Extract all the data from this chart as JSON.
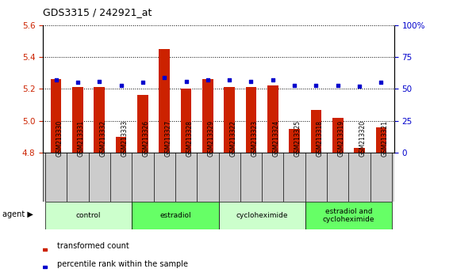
{
  "title": "GDS3315 / 242921_at",
  "categories": [
    "GSM213330",
    "GSM213331",
    "GSM213332",
    "GSM213333",
    "GSM213326",
    "GSM213327",
    "GSM213328",
    "GSM213329",
    "GSM213322",
    "GSM213323",
    "GSM213324",
    "GSM213325",
    "GSM213318",
    "GSM213319",
    "GSM213320",
    "GSM213321"
  ],
  "red_values": [
    5.26,
    5.21,
    5.21,
    4.9,
    5.16,
    5.45,
    5.2,
    5.26,
    5.21,
    5.21,
    5.22,
    4.95,
    5.07,
    5.02,
    4.83,
    4.96
  ],
  "blue_values": [
    57,
    55,
    56,
    53,
    55,
    59,
    56,
    57,
    57,
    56,
    57,
    53,
    53,
    53,
    52,
    55
  ],
  "ymin": 4.8,
  "ymax": 5.6,
  "y2min": 0,
  "y2max": 100,
  "yticks": [
    4.8,
    5.0,
    5.2,
    5.4,
    5.6
  ],
  "y2ticks": [
    0,
    25,
    50,
    75,
    100
  ],
  "groups": [
    {
      "label": "control",
      "start": 0,
      "end": 4,
      "color": "#ccffcc"
    },
    {
      "label": "estradiol",
      "start": 4,
      "end": 8,
      "color": "#66ff66"
    },
    {
      "label": "cycloheximide",
      "start": 8,
      "end": 12,
      "color": "#ccffcc"
    },
    {
      "label": "estradiol and\ncycloheximide",
      "start": 12,
      "end": 16,
      "color": "#66ff66"
    }
  ],
  "bar_color": "#cc2200",
  "dot_color": "#0000cc",
  "bar_width": 0.5,
  "legend_red": "transformed count",
  "legend_blue": "percentile rank within the sample",
  "background_color": "#ffffff",
  "tick_label_color_left": "#cc2200",
  "tick_label_color_right": "#0000cc",
  "xtick_bg": "#cccccc"
}
